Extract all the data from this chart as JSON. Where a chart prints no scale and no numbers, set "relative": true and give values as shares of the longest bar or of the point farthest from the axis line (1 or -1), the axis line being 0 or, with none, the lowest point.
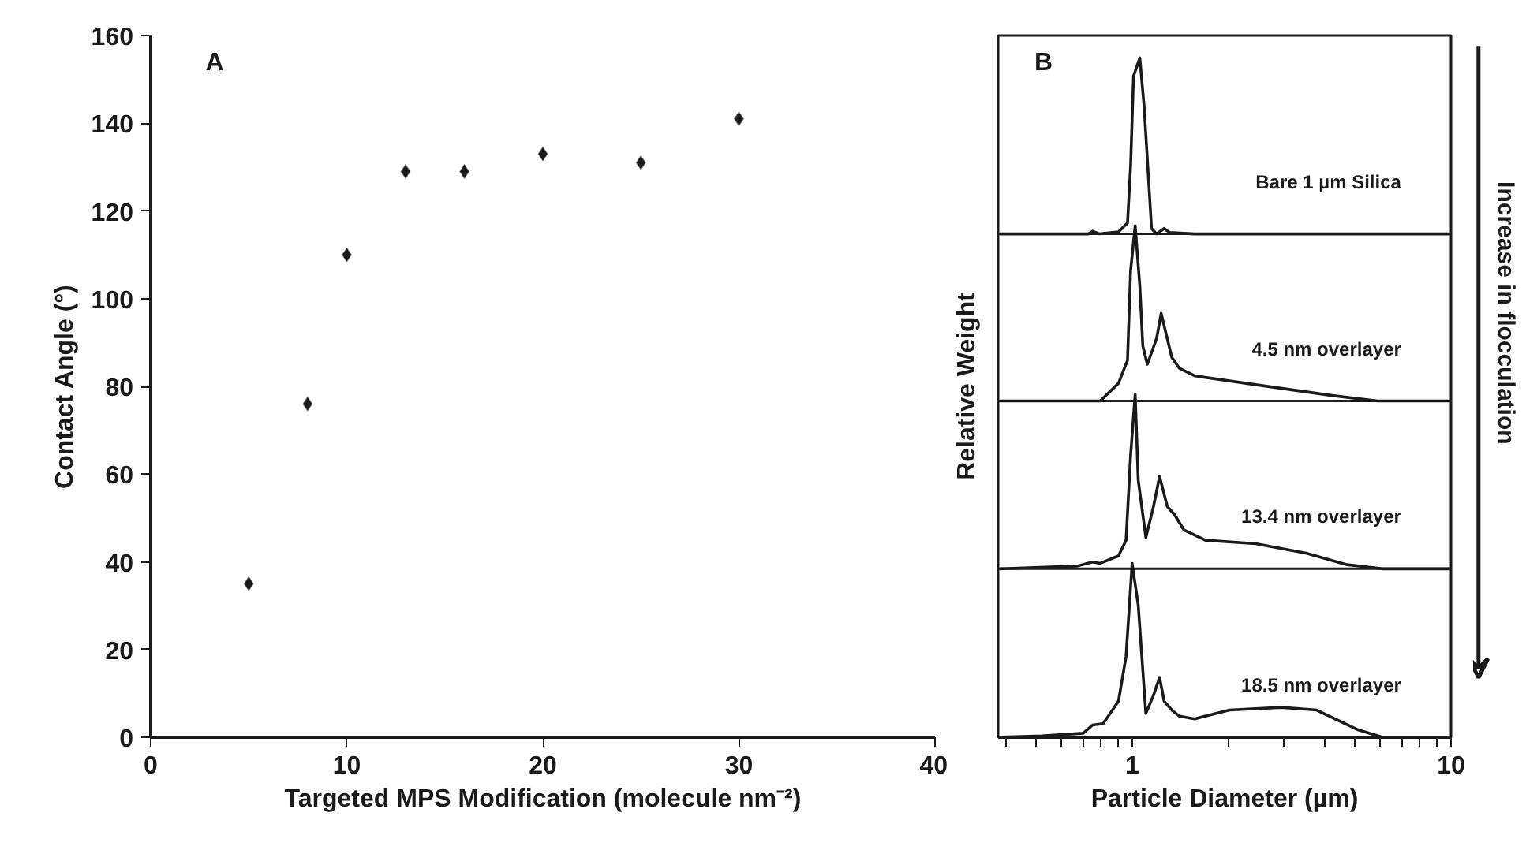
{
  "chart_data": [
    {
      "type": "scatter",
      "xlabel": "Targeted MPS Modification (molecule nm⁻²)",
      "ylabel": "Contact Angle (°)",
      "annotations": [
        "A"
      ],
      "x": [
        5,
        8,
        10,
        13,
        16,
        20,
        25,
        30
      ],
      "values": [
        35,
        76,
        110,
        129,
        129,
        133,
        131,
        141
      ],
      "color": "#1a1a1a",
      "marker": "diamond",
      "xlim": [
        0,
        40
      ],
      "xticks": [
        0,
        10,
        20,
        30,
        40
      ],
      "ylim": [
        0,
        160
      ],
      "yticks": [
        0,
        20,
        40,
        60,
        80,
        100,
        120,
        140,
        160
      ],
      "grid": false
    },
    {
      "type": "line",
      "xlabel": "Particle Diameter (µm)",
      "ylabel": "Relative Weight",
      "annotations": [
        "B",
        "Increase  in flocculation"
      ],
      "relative": true,
      "log": "x",
      "tick_labels": "x",
      "grid": false,
      "xlim": [
        0.38,
        10
      ],
      "xticks": [
        {
          "value": 0.4,
          "label": null
        },
        {
          "value": 0.5,
          "label": null
        },
        {
          "value": 0.6,
          "label": null
        },
        {
          "value": 0.7,
          "label": null
        },
        {
          "value": 0.8,
          "label": null
        },
        {
          "value": 0.9,
          "label": null
        },
        1,
        {
          "value": 2,
          "label": null
        },
        {
          "value": 3,
          "label": null
        },
        {
          "value": 4,
          "label": null
        },
        {
          "value": 5,
          "label": null
        },
        {
          "value": 6,
          "label": null
        },
        {
          "value": 7,
          "label": null
        },
        {
          "value": 8,
          "label": null
        },
        {
          "value": 9,
          "label": null
        },
        10
      ],
      "ref_lines": [
        {
          "axis": "y",
          "value": 0.741
        },
        {
          "axis": "y",
          "value": 0.495
        },
        {
          "axis": "y",
          "value": 0.248
        }
      ],
      "series": [
        {
          "name": "Bare 1 µm Silica",
          "color": "#1a1a1a",
          "x": [
            0.384,
            0.73,
            0.751,
            0.79,
            0.906,
            0.967,
            0.989,
            1.01,
            1.057,
            1.09,
            1.129,
            1.15,
            1.193,
            1.26,
            1.31,
            1.571,
            10
          ],
          "values": [
            0.741,
            0.741,
            0.745,
            0.741,
            0.744,
            0.757,
            0.841,
            0.973,
            1.0,
            0.929,
            0.812,
            0.749,
            0.741,
            0.749,
            0.743,
            0.741,
            0.741
          ]
        },
        {
          "name": "4.5 nm overlayer",
          "color": "#1a1a1a",
          "x": [
            0.384,
            0.794,
            0.906,
            0.967,
            0.989,
            1.022,
            1.057,
            1.08,
            1.116,
            1.193,
            1.233,
            1.288,
            1.332,
            1.407,
            1.571,
            2.44,
            4.24,
            5.88,
            10
          ],
          "values": [
            0.495,
            0.495,
            0.521,
            0.555,
            0.687,
            0.753,
            0.664,
            0.576,
            0.549,
            0.587,
            0.624,
            0.587,
            0.559,
            0.543,
            0.532,
            0.519,
            0.503,
            0.495,
            0.495
          ]
        },
        {
          "name": "13.4 nm overlayer",
          "color": "#1a1a1a",
          "x": [
            0.384,
            0.673,
            0.751,
            0.794,
            0.906,
            0.957,
            0.989,
            1.022,
            1.045,
            1.104,
            1.167,
            1.219,
            1.288,
            1.361,
            1.454,
            1.697,
            2.44,
            3.51,
            4.72,
            6.09,
            10
          ],
          "values": [
            0.248,
            0.252,
            0.258,
            0.256,
            0.267,
            0.29,
            0.415,
            0.505,
            0.378,
            0.294,
            0.34,
            0.384,
            0.34,
            0.327,
            0.305,
            0.29,
            0.285,
            0.271,
            0.254,
            0.248,
            0.248
          ]
        },
        {
          "name": "18.5 nm overlayer",
          "color": "#1a1a1a",
          "x": [
            0.384,
            0.522,
            0.703,
            0.751,
            0.811,
            0.906,
            0.957,
            1.0,
            1.045,
            1.104,
            1.167,
            1.219,
            1.26,
            1.332,
            1.407,
            1.571,
            2.02,
            2.94,
            3.79,
            5.11,
            6.09,
            10
          ],
          "values": [
            0,
            0.002,
            0.006,
            0.018,
            0.02,
            0.053,
            0.119,
            0.256,
            0.194,
            0.035,
            0.062,
            0.088,
            0.053,
            0.04,
            0.031,
            0.027,
            0.04,
            0.044,
            0.04,
            0.011,
            0,
            0
          ]
        }
      ]
    }
  ]
}
